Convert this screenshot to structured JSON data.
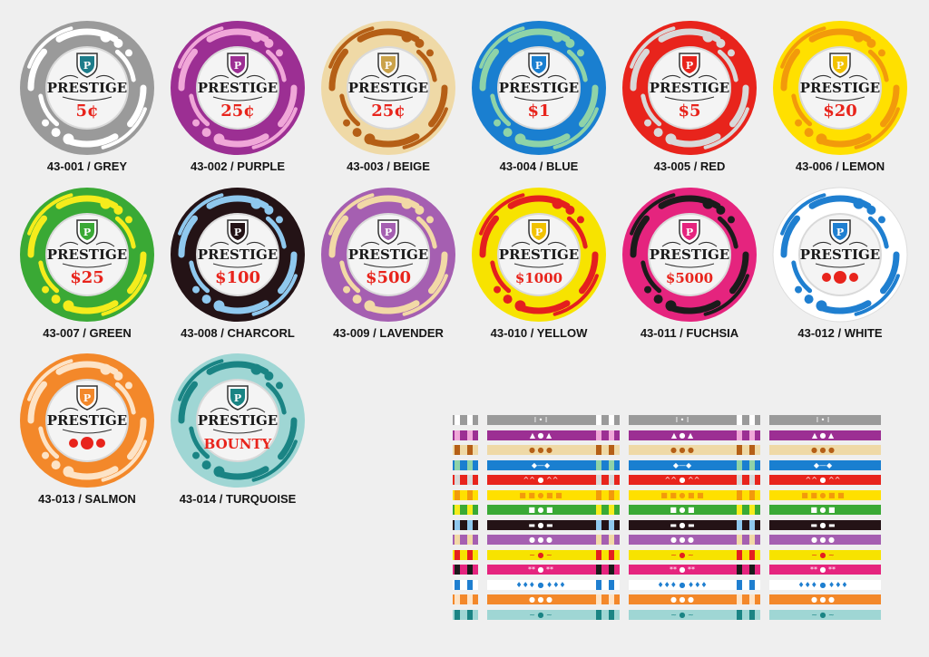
{
  "chips": [
    {
      "code": "43-001",
      "color": "GREY",
      "label": "43-001 / GREY",
      "value": "5¢",
      "brand": "PRESTIGE",
      "logo": "P",
      "ring": "#9a9a9a",
      "accent": "#ffffff",
      "logo_color": "#1d7c8a"
    },
    {
      "code": "43-002",
      "color": "PURPLE",
      "label": "43-002 / PURPLE",
      "value": "25¢",
      "brand": "PRESTIGE",
      "logo": "P",
      "ring": "#9c2f93",
      "accent": "#f0a7d8",
      "logo_color": "#9c2f93"
    },
    {
      "code": "43-003",
      "color": "BEIGE",
      "label": "43-003 / BEIGE",
      "value": "25¢",
      "brand": "PRESTIGE",
      "logo": "P",
      "ring": "#efd9a6",
      "accent": "#b55f16",
      "logo_color": "#caa24a"
    },
    {
      "code": "43-004",
      "color": "BLUE",
      "label": "43-004 / BLUE",
      "value": "$1",
      "brand": "PRESTIGE",
      "logo": "P",
      "ring": "#1a7fd0",
      "accent": "#8fd3a8",
      "logo_color": "#1a7fd0"
    },
    {
      "code": "43-005",
      "color": "RED",
      "label": "43-005 / RED",
      "value": "$5",
      "brand": "PRESTIGE",
      "logo": "P",
      "ring": "#e8241c",
      "accent": "#d9d9d9",
      "logo_color": "#e8241c"
    },
    {
      "code": "43-006",
      "color": "LEMON",
      "label": "43-006 / LEMON",
      "value": "$20",
      "brand": "PRESTIGE",
      "logo": "P",
      "ring": "#ffe000",
      "accent": "#f29a0b",
      "logo_color": "#f2c200"
    },
    {
      "code": "43-007",
      "color": "GREEN",
      "label": "43-007 / GREEN",
      "value": "$25",
      "brand": "PRESTIGE",
      "logo": "P",
      "ring": "#3aa935",
      "accent": "#f5ec1c",
      "logo_color": "#3aa935"
    },
    {
      "code": "43-008",
      "color": "CHARCORL",
      "label": "43-008 / CHARCORL",
      "value": "$100",
      "brand": "PRESTIGE",
      "logo": "P",
      "ring": "#241316",
      "accent": "#8fc8ee",
      "logo_color": "#241316"
    },
    {
      "code": "43-009",
      "color": "LAVENDER",
      "label": "43-009 / LAVENDER",
      "value": "$500",
      "brand": "PRESTIGE",
      "logo": "P",
      "ring": "#a55fb1",
      "accent": "#f2d9a6",
      "logo_color": "#a55fb1"
    },
    {
      "code": "43-010",
      "color": "YELLOW",
      "label": "43-010 / YELLOW",
      "value": "$1000",
      "brand": "PRESTIGE",
      "logo": "P",
      "ring": "#f7e300",
      "accent": "#e41f1f",
      "logo_color": "#f2c200"
    },
    {
      "code": "43-011",
      "color": "FUCHSIA",
      "label": "43-011 / FUCHSIA",
      "value": "$5000",
      "brand": "PRESTIGE",
      "logo": "P",
      "ring": "#e5247e",
      "accent": "#1b1b1b",
      "logo_color": "#e5247e"
    },
    {
      "code": "43-012",
      "color": "WHITE",
      "label": "43-012 / WHITE",
      "value": "",
      "brand": "PRESTIGE",
      "logo": "P",
      "ring": "#ffffff",
      "accent": "#1f7fd0",
      "logo_color": "#1f7fd0",
      "dots": true
    },
    {
      "code": "43-013",
      "color": "SALMON",
      "label": "43-013 / SALMON",
      "value": "",
      "brand": "PRESTIGE",
      "logo": "P",
      "ring": "#f3882a",
      "accent": "#fde3c6",
      "logo_color": "#f3882a",
      "dots": true
    },
    {
      "code": "43-014",
      "color": "TURQUOISE",
      "label": "43-014 / TURQUOISE",
      "value": "BOUNTY",
      "brand": "PRESTIGE",
      "logo": "P",
      "ring": "#9fd6d4",
      "accent": "#1a8484",
      "logo_color": "#1a8484"
    }
  ],
  "stripes": [
    {
      "color": "#9a9a9a",
      "edge": "#ffffff",
      "mark": "I • I"
    },
    {
      "color": "#9c2f93",
      "edge": "#f0a7d8",
      "mark": "▲ ● ▲"
    },
    {
      "color": "#efd9a6",
      "edge": "#b55f16",
      "mark": "● ● ●"
    },
    {
      "color": "#1a7fd0",
      "edge": "#8fd3a8",
      "mark": "◆—◆"
    },
    {
      "color": "#e8241c",
      "edge": "#d9d9d9",
      "mark": "^^ ● ^^"
    },
    {
      "color": "#ffe000",
      "edge": "#f29a0b",
      "mark": "■ ■ ● ■ ■"
    },
    {
      "color": "#3aa935",
      "edge": "#f5ec1c",
      "mark": "■ ● ■"
    },
    {
      "color": "#241316",
      "edge": "#8fc8ee",
      "mark": "▬ ● ▬"
    },
    {
      "color": "#a55fb1",
      "edge": "#f2d9a6",
      "mark": "● ● ●"
    },
    {
      "color": "#f7e300",
      "edge": "#e41f1f",
      "mark": "~ ● ~"
    },
    {
      "color": "#e5247e",
      "edge": "#1b1b1b",
      "mark": "** ● **"
    },
    {
      "color": "#ffffff",
      "edge": "#1f7fd0",
      "mark": "♦♦♦ ● ♦♦♦"
    },
    {
      "color": "#f3882a",
      "edge": "#fde3c6",
      "mark": "● ● ●"
    },
    {
      "color": "#9fd6d4",
      "edge": "#1a8484",
      "mark": "~ ● ~"
    }
  ]
}
